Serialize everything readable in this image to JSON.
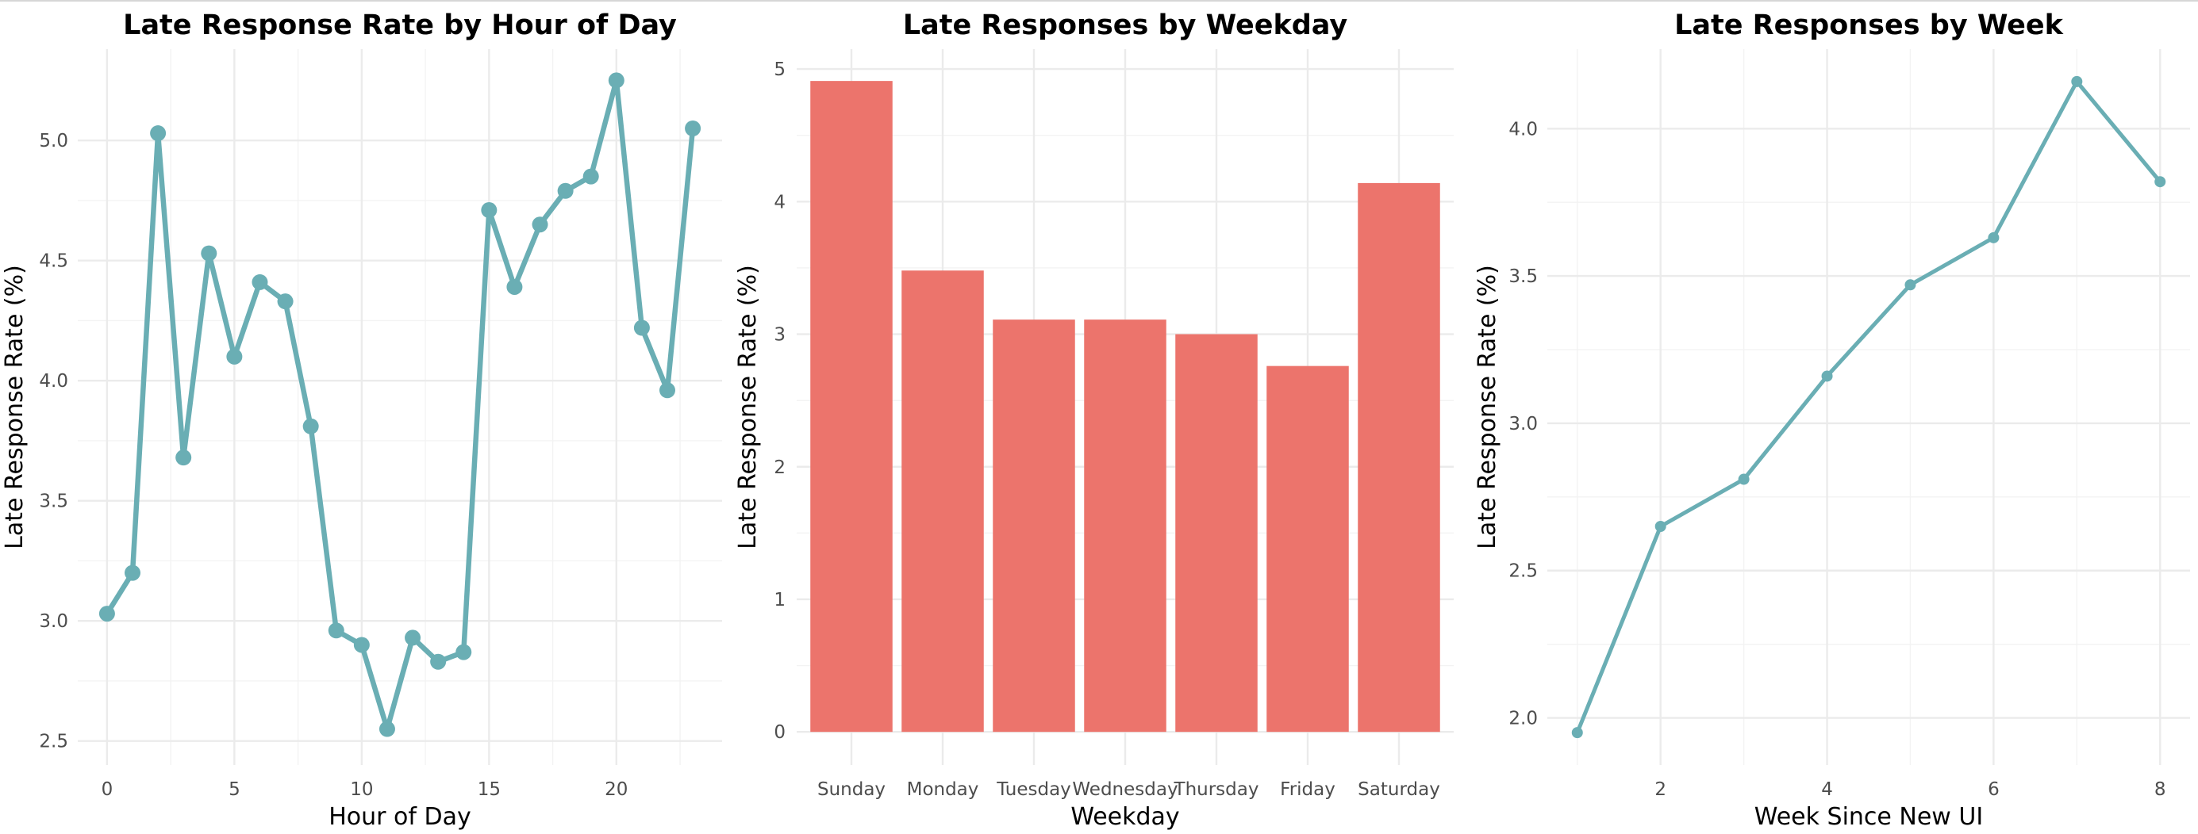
{
  "chart_data": [
    {
      "type": "line",
      "title": "Late Response Rate by Hour of Day",
      "xlabel": "Hour of Day",
      "ylabel": "Late Response Rate (%)",
      "xlim": [
        0,
        23
      ],
      "ylim": [
        2.5,
        5.25
      ],
      "x_ticks": [
        0,
        5,
        10,
        15,
        20
      ],
      "y_ticks": [
        2.5,
        3.0,
        3.5,
        4.0,
        4.5,
        5.0
      ],
      "x_tick_labels": [
        "0",
        "5",
        "10",
        "15",
        "20"
      ],
      "y_tick_labels": [
        "2.5",
        "3.0",
        "3.5",
        "4.0",
        "4.5",
        "5.0"
      ],
      "grid": true,
      "color": "#6aaeb4",
      "series": [
        {
          "x": [
            0,
            1,
            2,
            3,
            4,
            5,
            6,
            7,
            8,
            9,
            10,
            11,
            12,
            13,
            14,
            15,
            16,
            17,
            18,
            19,
            20,
            21,
            22,
            23
          ],
          "values": [
            3.03,
            3.2,
            5.03,
            3.68,
            4.53,
            4.1,
            4.41,
            4.33,
            3.81,
            2.96,
            2.9,
            2.55,
            2.93,
            2.83,
            2.87,
            4.71,
            4.39,
            4.65,
            4.79,
            4.85,
            5.25,
            4.22,
            3.96,
            5.05
          ]
        }
      ]
    },
    {
      "type": "bar",
      "title": "Late Responses by Weekday",
      "xlabel": "Weekday",
      "ylabel": "Late Response Rate (%)",
      "ylim": [
        0,
        5
      ],
      "y_ticks": [
        0,
        1,
        2,
        3,
        4,
        5
      ],
      "y_tick_labels": [
        "0",
        "1",
        "2",
        "3",
        "4",
        "5"
      ],
      "grid": true,
      "color": "#ec746c",
      "categories": [
        "Sunday",
        "Monday",
        "Tuesday",
        "Wednesday",
        "Thursday",
        "Friday",
        "Saturday"
      ],
      "values": [
        4.91,
        3.48,
        3.11,
        3.11,
        3.0,
        2.76,
        4.14
      ]
    },
    {
      "type": "line",
      "title": "Late Responses by Week",
      "xlabel": "Week Since New UI",
      "ylabel": "Late Response Rate (%)",
      "xlim": [
        1,
        8
      ],
      "ylim": [
        1.95,
        4.16
      ],
      "x_ticks": [
        2,
        4,
        6,
        8
      ],
      "y_ticks": [
        2.0,
        2.5,
        3.0,
        3.5,
        4.0
      ],
      "x_tick_labels": [
        "2",
        "4",
        "6",
        "8"
      ],
      "y_tick_labels": [
        "2.0",
        "2.5",
        "3.0",
        "3.5",
        "4.0"
      ],
      "grid": true,
      "color": "#6aaeb4",
      "series": [
        {
          "x": [
            1,
            2,
            3,
            4,
            5,
            6,
            7,
            8
          ],
          "values": [
            1.95,
            2.65,
            2.81,
            3.16,
            3.47,
            3.63,
            4.16,
            3.82
          ]
        }
      ]
    }
  ]
}
